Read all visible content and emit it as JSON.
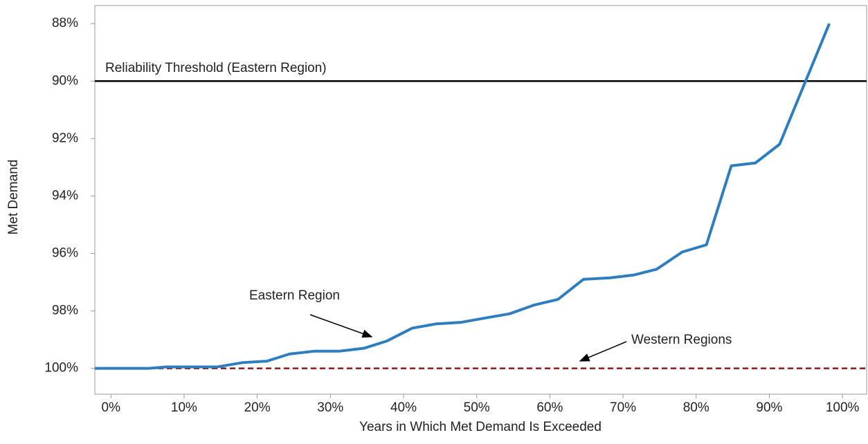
{
  "chart_data": {
    "type": "line",
    "x_label": "Years in Which Met Demand Is Exceeded",
    "y_label": "Met Demand",
    "xlim": [
      -2.2,
      103.3
    ],
    "ylim": [
      100.9,
      87.37
    ],
    "y_reversed": true,
    "xticks": [
      {
        "value": 0,
        "label": "0%"
      },
      {
        "value": 10,
        "label": "10%"
      },
      {
        "value": 20,
        "label": "20%"
      },
      {
        "value": 30,
        "label": "30%"
      },
      {
        "value": 40,
        "label": "40%"
      },
      {
        "value": 50,
        "label": "50%"
      },
      {
        "value": 60,
        "label": "60%"
      },
      {
        "value": 70,
        "label": "70%"
      },
      {
        "value": 80,
        "label": "80%"
      },
      {
        "value": 90,
        "label": "90%"
      },
      {
        "value": 100,
        "label": "100%"
      }
    ],
    "yticks": [
      {
        "value": 88,
        "label": "88%"
      },
      {
        "value": 90,
        "label": "90%"
      },
      {
        "value": 92,
        "label": "92%"
      },
      {
        "value": 94,
        "label": "94%"
      },
      {
        "value": 96,
        "label": "96%"
      },
      {
        "value": 98,
        "label": "98%"
      },
      {
        "value": 100,
        "label": "100%"
      }
    ],
    "series": [
      {
        "name": "Eastern Region",
        "color": "#2e7ebf",
        "x": [
          -2.2,
          5.2,
          7.6,
          14.5,
          18.0,
          21.3,
          24.4,
          27.9,
          31.3,
          34.6,
          37.7,
          41.2,
          44.5,
          47.8,
          51.1,
          54.5,
          57.8,
          61.1,
          64.6,
          68.2,
          71.5,
          74.6,
          78.1,
          81.4,
          84.8,
          88.1,
          91.4,
          98.2
        ],
        "values": [
          100,
          100,
          99.95,
          99.95,
          99.8,
          99.75,
          99.5,
          99.4,
          99.4,
          99.3,
          99.05,
          98.6,
          98.45,
          98.4,
          98.25,
          98.1,
          97.8,
          97.6,
          96.9,
          96.85,
          96.75,
          96.55,
          95.95,
          95.7,
          92.95,
          92.85,
          92.2,
          88
        ]
      }
    ],
    "reference_lines": [
      {
        "label": "Reliability Threshold (Eastern Region)",
        "value": 90,
        "color": "#000000",
        "dashed": false
      },
      {
        "label": "Western Regions",
        "value": 100,
        "color": "#8b1a1a",
        "dashed": true
      }
    ]
  }
}
